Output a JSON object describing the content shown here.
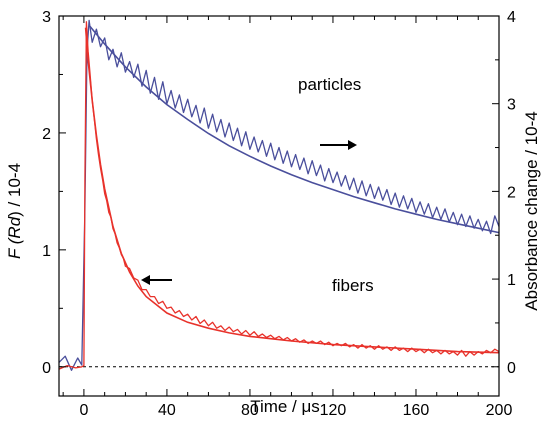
{
  "chart_data": {
    "type": "line",
    "title": "",
    "xlabel": "Time / μs",
    "ylabel_left_parts": [
      "F (",
      "Rd",
      ") / 10-4"
    ],
    "ylabel_right": "Absorbance change / 10-4",
    "xlim": [
      -12,
      200
    ],
    "ylim_left": [
      -0.25,
      3
    ],
    "ylim_right": [
      -0.3333,
      4
    ],
    "x_ticks": [
      0,
      40,
      80,
      120,
      160,
      200
    ],
    "y_ticks_left": [
      0,
      1,
      2,
      3
    ],
    "y_ticks_right": [
      0,
      1,
      2,
      3,
      4
    ],
    "annotations": [
      {
        "text": "particles",
        "series": "particles",
        "arrow": "right"
      },
      {
        "text": "fibers",
        "series": "fibers",
        "arrow": "left"
      }
    ],
    "baseline": {
      "y": 0,
      "style": "dashed"
    },
    "series": [
      {
        "name": "particles",
        "axis": "right",
        "color": "#4a4f9c",
        "raw": [
          [
            -12,
            0.05
          ],
          [
            -9,
            0.12
          ],
          [
            -6,
            -0.04
          ],
          [
            -3,
            0.1
          ],
          [
            -1,
            0.02
          ],
          [
            0.5,
            1.8
          ],
          [
            1.5,
            3.6
          ],
          [
            2.5,
            3.95
          ],
          [
            4,
            3.7
          ],
          [
            6,
            3.85
          ],
          [
            8,
            3.65
          ],
          [
            10,
            3.75
          ],
          [
            12,
            3.5
          ],
          [
            14,
            3.62
          ],
          [
            16,
            3.42
          ],
          [
            18,
            3.58
          ],
          [
            20,
            3.36
          ],
          [
            22,
            3.48
          ],
          [
            24,
            3.3
          ],
          [
            26,
            3.45
          ],
          [
            28,
            3.2
          ],
          [
            30,
            3.38
          ],
          [
            32,
            3.12
          ],
          [
            34,
            3.3
          ],
          [
            36,
            3.05
          ],
          [
            38,
            3.25
          ],
          [
            40,
            3.0
          ],
          [
            42,
            3.15
          ],
          [
            44,
            2.95
          ],
          [
            46,
            3.1
          ],
          [
            48,
            2.9
          ],
          [
            50,
            3.05
          ],
          [
            52,
            2.85
          ],
          [
            54,
            2.98
          ],
          [
            56,
            2.78
          ],
          [
            58,
            2.95
          ],
          [
            60,
            2.72
          ],
          [
            62,
            2.88
          ],
          [
            64,
            2.68
          ],
          [
            66,
            2.82
          ],
          [
            68,
            2.62
          ],
          [
            70,
            2.78
          ],
          [
            72,
            2.58
          ],
          [
            74,
            2.72
          ],
          [
            76,
            2.52
          ],
          [
            78,
            2.68
          ],
          [
            80,
            2.48
          ],
          [
            82,
            2.62
          ],
          [
            84,
            2.45
          ],
          [
            86,
            2.58
          ],
          [
            88,
            2.4
          ],
          [
            90,
            2.55
          ],
          [
            92,
            2.36
          ],
          [
            94,
            2.5
          ],
          [
            96,
            2.32
          ],
          [
            98,
            2.46
          ],
          [
            100,
            2.28
          ],
          [
            102,
            2.42
          ],
          [
            104,
            2.25
          ],
          [
            106,
            2.38
          ],
          [
            108,
            2.2
          ],
          [
            110,
            2.35
          ],
          [
            112,
            2.18
          ],
          [
            114,
            2.3
          ],
          [
            116,
            2.12
          ],
          [
            118,
            2.26
          ],
          [
            120,
            2.1
          ],
          [
            122,
            2.22
          ],
          [
            124,
            2.06
          ],
          [
            126,
            2.18
          ],
          [
            128,
            2.02
          ],
          [
            130,
            2.15
          ],
          [
            132,
            1.98
          ],
          [
            134,
            2.12
          ],
          [
            136,
            1.95
          ],
          [
            138,
            2.08
          ],
          [
            140,
            1.92
          ],
          [
            142,
            2.05
          ],
          [
            144,
            1.9
          ],
          [
            146,
            2.02
          ],
          [
            148,
            1.85
          ],
          [
            150,
            1.98
          ],
          [
            152,
            1.82
          ],
          [
            154,
            1.95
          ],
          [
            156,
            1.8
          ],
          [
            158,
            1.92
          ],
          [
            160,
            1.76
          ],
          [
            162,
            1.88
          ],
          [
            164,
            1.74
          ],
          [
            166,
            1.86
          ],
          [
            168,
            1.7
          ],
          [
            170,
            1.82
          ],
          [
            172,
            1.68
          ],
          [
            174,
            1.8
          ],
          [
            176,
            1.65
          ],
          [
            178,
            1.76
          ],
          [
            180,
            1.62
          ],
          [
            182,
            1.74
          ],
          [
            184,
            1.6
          ],
          [
            186,
            1.72
          ],
          [
            188,
            1.58
          ],
          [
            190,
            1.68
          ],
          [
            192,
            1.55
          ],
          [
            194,
            1.66
          ],
          [
            196,
            1.52
          ],
          [
            198,
            1.72
          ],
          [
            200,
            1.6
          ]
        ],
        "fit": [
          [
            3,
            3.88
          ],
          [
            10,
            3.68
          ],
          [
            20,
            3.42
          ],
          [
            30,
            3.19
          ],
          [
            40,
            2.99
          ],
          [
            50,
            2.82
          ],
          [
            60,
            2.66
          ],
          [
            70,
            2.52
          ],
          [
            80,
            2.4
          ],
          [
            90,
            2.29
          ],
          [
            100,
            2.19
          ],
          [
            110,
            2.1
          ],
          [
            120,
            2.02
          ],
          [
            130,
            1.94
          ],
          [
            140,
            1.87
          ],
          [
            150,
            1.8
          ],
          [
            160,
            1.74
          ],
          [
            170,
            1.68
          ],
          [
            180,
            1.63
          ],
          [
            190,
            1.58
          ],
          [
            200,
            1.53
          ]
        ]
      },
      {
        "name": "fibers",
        "axis": "left",
        "color": "#e8322b",
        "raw": [
          [
            -12,
            -0.02
          ],
          [
            -8,
            0.01
          ],
          [
            -4,
            -0.01
          ],
          [
            -1,
            0.0
          ],
          [
            0,
            0.01
          ],
          [
            0.5,
            1.6
          ],
          [
            1.2,
            2.95
          ],
          [
            2,
            2.7
          ],
          [
            3,
            2.5
          ],
          [
            4,
            2.28
          ],
          [
            5,
            2.12
          ],
          [
            6,
            1.95
          ],
          [
            7,
            1.82
          ],
          [
            8,
            1.7
          ],
          [
            9,
            1.6
          ],
          [
            10,
            1.48
          ],
          [
            11,
            1.42
          ],
          [
            12,
            1.32
          ],
          [
            13,
            1.28
          ],
          [
            14,
            1.18
          ],
          [
            15,
            1.14
          ],
          [
            16,
            1.06
          ],
          [
            17,
            1.02
          ],
          [
            18,
            0.96
          ],
          [
            19,
            0.93
          ],
          [
            20,
            0.86
          ],
          [
            22,
            0.84
          ],
          [
            24,
            0.76
          ],
          [
            26,
            0.74
          ],
          [
            28,
            0.66
          ],
          [
            30,
            0.66
          ],
          [
            32,
            0.6
          ],
          [
            34,
            0.6
          ],
          [
            36,
            0.54
          ],
          [
            38,
            0.56
          ],
          [
            40,
            0.5
          ],
          [
            42,
            0.51
          ],
          [
            44,
            0.46
          ],
          [
            46,
            0.48
          ],
          [
            48,
            0.43
          ],
          [
            50,
            0.45
          ],
          [
            52,
            0.4
          ],
          [
            54,
            0.43
          ],
          [
            56,
            0.37
          ],
          [
            58,
            0.4
          ],
          [
            60,
            0.35
          ],
          [
            62,
            0.38
          ],
          [
            64,
            0.33
          ],
          [
            66,
            0.35
          ],
          [
            68,
            0.31
          ],
          [
            70,
            0.34
          ],
          [
            72,
            0.3
          ],
          [
            74,
            0.32
          ],
          [
            76,
            0.28
          ],
          [
            78,
            0.31
          ],
          [
            80,
            0.27
          ],
          [
            82,
            0.3
          ],
          [
            84,
            0.26
          ],
          [
            86,
            0.28
          ],
          [
            88,
            0.25
          ],
          [
            90,
            0.27
          ],
          [
            92,
            0.24
          ],
          [
            94,
            0.26
          ],
          [
            96,
            0.23
          ],
          [
            98,
            0.25
          ],
          [
            100,
            0.22
          ],
          [
            102,
            0.24
          ],
          [
            104,
            0.21
          ],
          [
            106,
            0.23
          ],
          [
            108,
            0.2
          ],
          [
            110,
            0.22
          ],
          [
            112,
            0.2
          ],
          [
            114,
            0.22
          ],
          [
            116,
            0.19
          ],
          [
            118,
            0.21
          ],
          [
            120,
            0.18
          ],
          [
            122,
            0.2
          ],
          [
            124,
            0.18
          ],
          [
            126,
            0.2
          ],
          [
            128,
            0.17
          ],
          [
            130,
            0.19
          ],
          [
            132,
            0.16
          ],
          [
            134,
            0.19
          ],
          [
            136,
            0.16
          ],
          [
            138,
            0.18
          ],
          [
            140,
            0.15
          ],
          [
            142,
            0.18
          ],
          [
            144,
            0.15
          ],
          [
            146,
            0.17
          ],
          [
            148,
            0.14
          ],
          [
            150,
            0.17
          ],
          [
            152,
            0.14
          ],
          [
            154,
            0.16
          ],
          [
            156,
            0.13
          ],
          [
            158,
            0.16
          ],
          [
            160,
            0.13
          ],
          [
            162,
            0.15
          ],
          [
            164,
            0.12
          ],
          [
            166,
            0.15
          ],
          [
            168,
            0.12
          ],
          [
            170,
            0.14
          ],
          [
            172,
            0.11
          ],
          [
            174,
            0.14
          ],
          [
            176,
            0.11
          ],
          [
            178,
            0.13
          ],
          [
            180,
            0.1
          ],
          [
            182,
            0.14
          ],
          [
            184,
            0.09
          ],
          [
            186,
            0.13
          ],
          [
            188,
            0.1
          ],
          [
            190,
            0.13
          ],
          [
            192,
            0.11
          ],
          [
            194,
            0.14
          ],
          [
            196,
            0.12
          ],
          [
            198,
            0.15
          ],
          [
            200,
            0.13
          ]
        ],
        "fit": [
          [
            0.8,
            2.9
          ],
          [
            2,
            2.62
          ],
          [
            4,
            2.28
          ],
          [
            6,
            1.98
          ],
          [
            8,
            1.73
          ],
          [
            10,
            1.52
          ],
          [
            14,
            1.2
          ],
          [
            18,
            0.97
          ],
          [
            22,
            0.81
          ],
          [
            26,
            0.69
          ],
          [
            30,
            0.6
          ],
          [
            40,
            0.46
          ],
          [
            50,
            0.38
          ],
          [
            60,
            0.33
          ],
          [
            70,
            0.29
          ],
          [
            80,
            0.26
          ],
          [
            90,
            0.24
          ],
          [
            100,
            0.22
          ],
          [
            120,
            0.19
          ],
          [
            140,
            0.17
          ],
          [
            160,
            0.15
          ],
          [
            180,
            0.13
          ],
          [
            200,
            0.12
          ]
        ]
      }
    ]
  }
}
